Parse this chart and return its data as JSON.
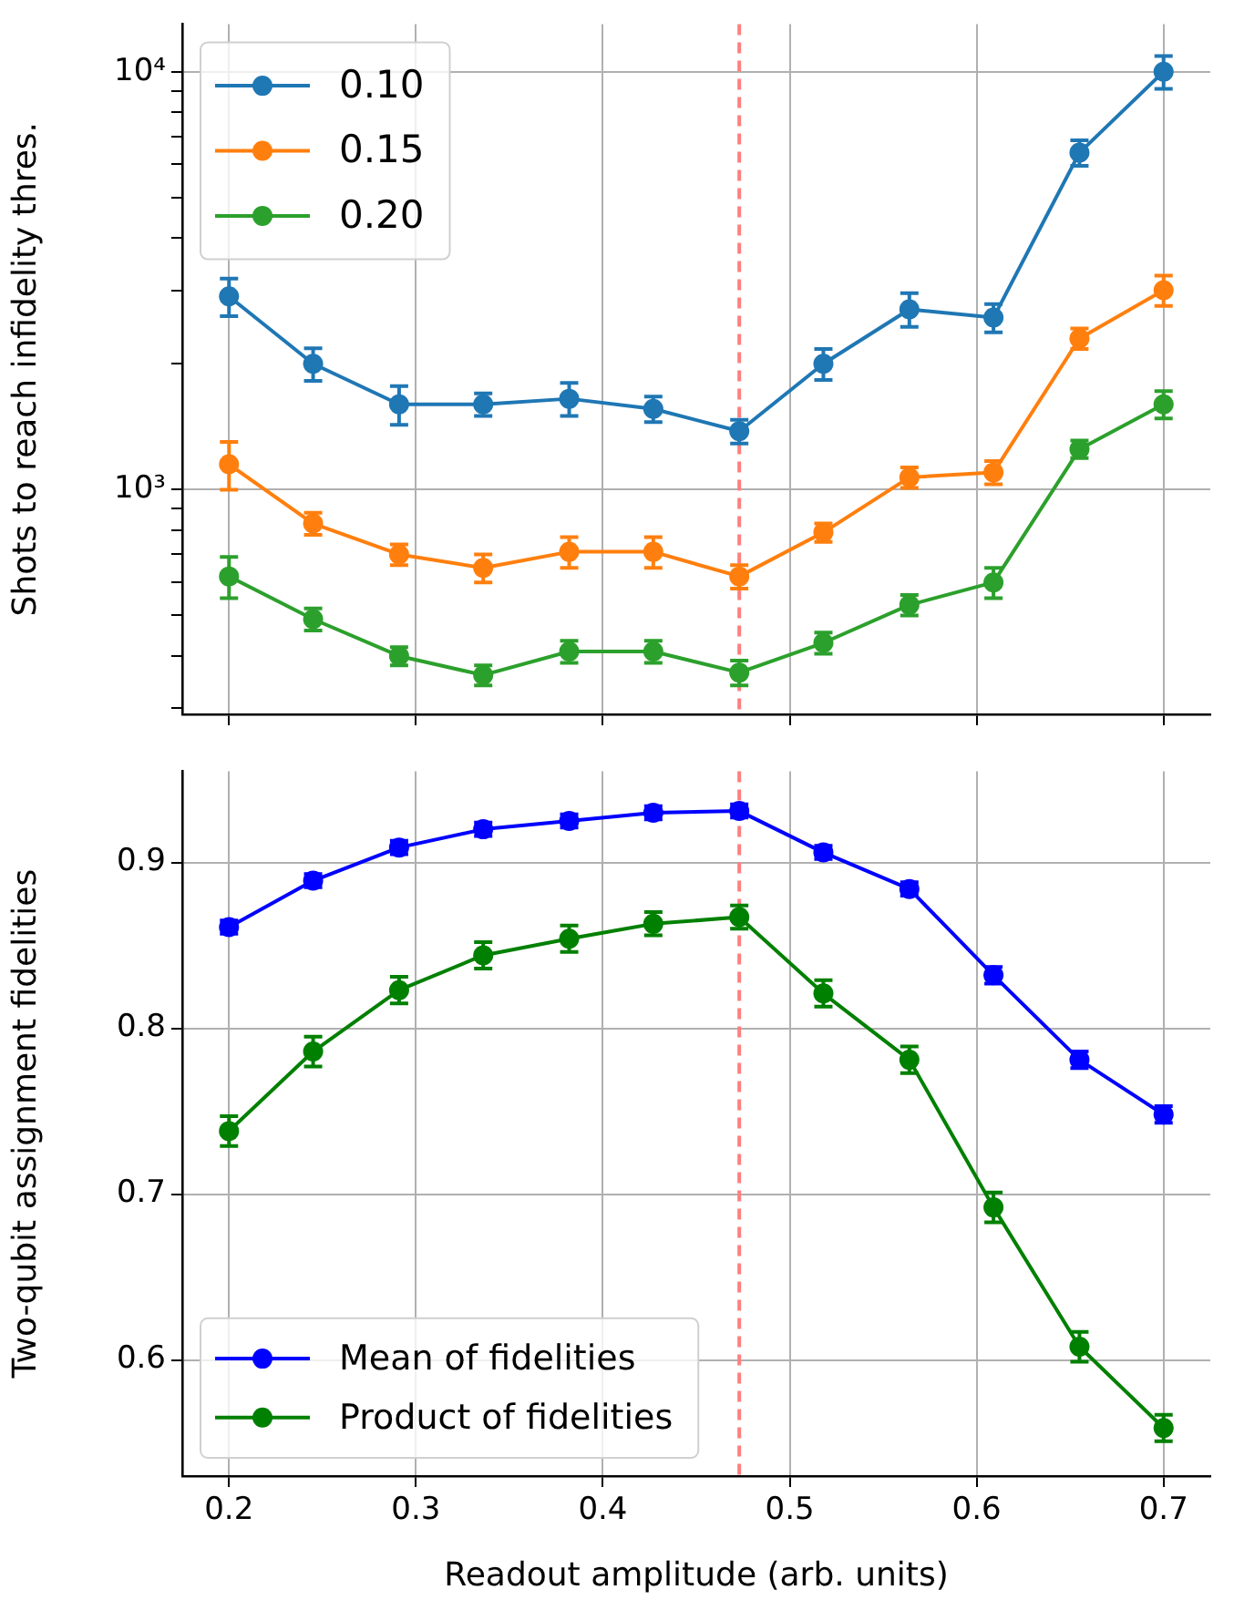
{
  "chart_data": [
    {
      "type": "line",
      "ylabel": "Shots to reach infidelity thres.",
      "log": "y",
      "grid": true,
      "legend": "top left",
      "marker": "circle",
      "line_style": "solid",
      "tick_labels": "y",
      "x": [
        0.2,
        0.245,
        0.291,
        0.336,
        0.382,
        0.427,
        0.473,
        0.518,
        0.564,
        0.609,
        0.655,
        0.7
      ],
      "xlim": [
        0.175,
        0.725
      ],
      "xticks": [
        0.2,
        0.3,
        0.4,
        0.5,
        0.6,
        0.7
      ],
      "ylim": [
        290,
        13000
      ],
      "yticks": [
        {
          "value": 300,
          "label": null
        },
        {
          "value": 400,
          "label": null
        },
        {
          "value": 500,
          "label": null
        },
        {
          "value": 600,
          "label": null
        },
        {
          "value": 700,
          "label": null
        },
        {
          "value": 800,
          "label": null
        },
        {
          "value": 900,
          "label": null
        },
        {
          "value": 1000,
          "label": "10³"
        },
        {
          "value": 2000,
          "label": null
        },
        {
          "value": 3000,
          "label": null
        },
        {
          "value": 4000,
          "label": null
        },
        {
          "value": 5000,
          "label": null
        },
        {
          "value": 6000,
          "label": null
        },
        {
          "value": 7000,
          "label": null
        },
        {
          "value": 8000,
          "label": null
        },
        {
          "value": 9000,
          "label": null
        },
        {
          "value": 10000,
          "label": "10⁴"
        }
      ],
      "ref_lines": [
        {
          "axis": "x",
          "value": 0.473,
          "color": "#ff7f7f",
          "line_style": "dashed"
        }
      ],
      "series": [
        {
          "name": "0.10",
          "color": "#1f77b4",
          "values": [
            2900,
            2000,
            1600,
            1600,
            1650,
            1560,
            1380,
            2000,
            2700,
            2580,
            6400,
            10000
          ],
          "errors": [
            300,
            180,
            170,
            100,
            150,
            110,
            90,
            170,
            250,
            200,
            450,
            900
          ]
        },
        {
          "name": "0.15",
          "color": "#ff7f0e",
          "values": [
            1150,
            830,
            700,
            650,
            710,
            710,
            620,
            790,
            1070,
            1100,
            2300,
            3000
          ],
          "errors": [
            150,
            50,
            40,
            50,
            60,
            60,
            40,
            40,
            60,
            70,
            130,
            250
          ]
        },
        {
          "name": "0.20",
          "color": "#2ca02c",
          "values": [
            620,
            490,
            400,
            360,
            410,
            410,
            365,
            430,
            530,
            600,
            1250,
            1600
          ],
          "errors": [
            70,
            30,
            20,
            20,
            25,
            25,
            25,
            25,
            30,
            50,
            60,
            120
          ]
        }
      ]
    },
    {
      "type": "line",
      "xlabel": "Readout amplitude (arb. units)",
      "ylabel": "Two-qubit assignment fidelities",
      "grid": true,
      "legend": "bottom left",
      "marker": "circle",
      "line_style": "solid",
      "x": [
        0.2,
        0.245,
        0.291,
        0.336,
        0.382,
        0.427,
        0.473,
        0.518,
        0.564,
        0.609,
        0.655,
        0.7
      ],
      "xlim": [
        0.175,
        0.725
      ],
      "xticks": [
        0.2,
        0.3,
        0.4,
        0.5,
        0.6,
        0.7
      ],
      "ylim": [
        0.53,
        0.955
      ],
      "yticks": [
        0.6,
        0.7,
        0.8,
        0.9
      ],
      "ref_lines": [
        {
          "axis": "x",
          "value": 0.473,
          "color": "#ff7f7f",
          "line_style": "dashed"
        }
      ],
      "series": [
        {
          "name": "Mean of fidelities",
          "color": "#0000ff",
          "values": [
            0.861,
            0.889,
            0.909,
            0.92,
            0.925,
            0.93,
            0.931,
            0.906,
            0.884,
            0.832,
            0.781,
            0.748
          ],
          "errors": [
            0.004,
            0.004,
            0.004,
            0.004,
            0.004,
            0.004,
            0.004,
            0.004,
            0.004,
            0.005,
            0.005,
            0.005
          ]
        },
        {
          "name": "Product of fidelities",
          "color": "#008000",
          "values": [
            0.738,
            0.786,
            0.823,
            0.844,
            0.854,
            0.863,
            0.867,
            0.821,
            0.781,
            0.692,
            0.608,
            0.559
          ],
          "errors": [
            0.009,
            0.009,
            0.008,
            0.008,
            0.008,
            0.007,
            0.007,
            0.008,
            0.008,
            0.009,
            0.009,
            0.008
          ]
        }
      ]
    }
  ]
}
